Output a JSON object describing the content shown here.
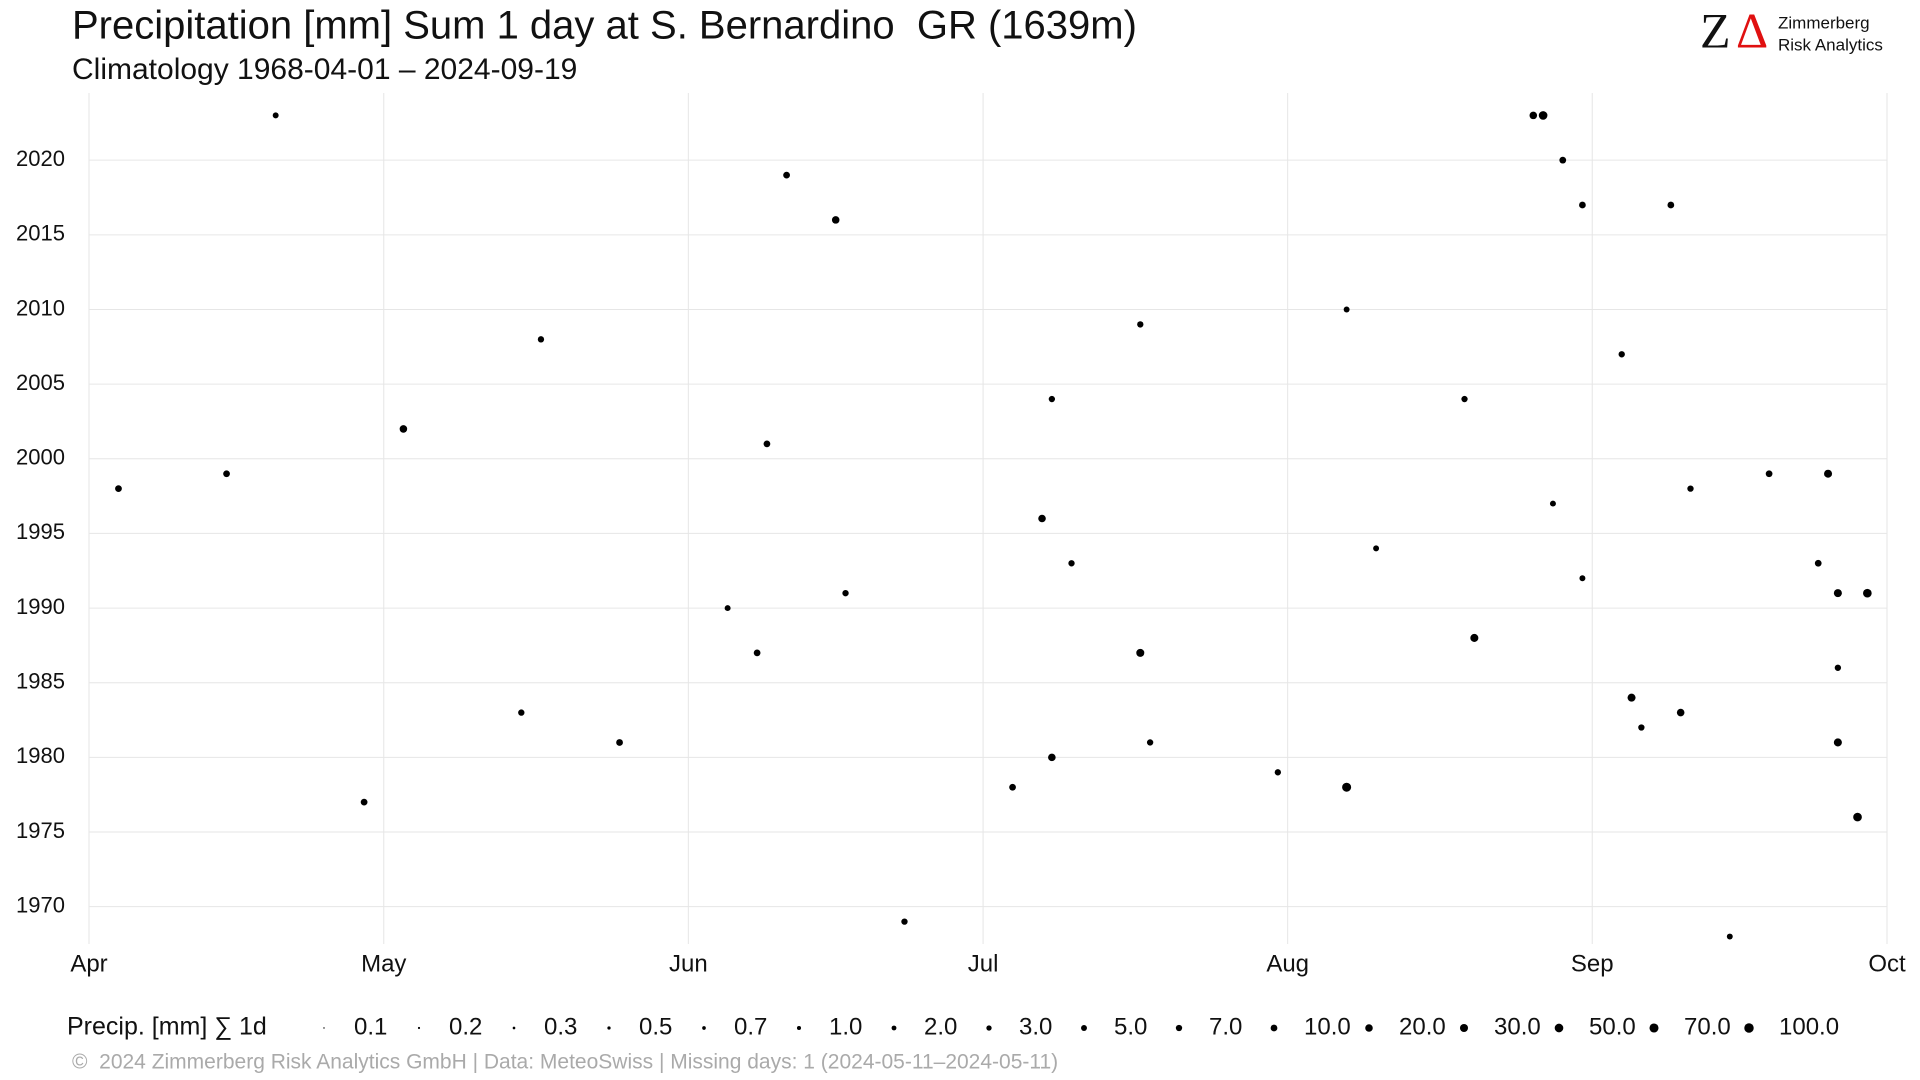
{
  "chart_data": {
    "type": "scatter",
    "title": "Precipitation [mm] Sum 1 day at S. Bernardino  GR (1639m)",
    "subtitle": "Climatology 1968-04-01 – 2024-09-19",
    "logo": {
      "mark_a": "Z",
      "mark_b": "Δ",
      "line1": "Zimmerberg",
      "line2": "Risk Analytics"
    },
    "footer": "©  2024 Zimmerberg Risk Analytics GmbH | Data: MeteoSwiss | Missing days: 1 (2024-05-11–2024-05-11)",
    "xlim": [
      0,
      183
    ],
    "xticks": [
      {
        "value": 0,
        "label": "Apr"
      },
      {
        "value": 30,
        "label": "May"
      },
      {
        "value": 61,
        "label": "Jun"
      },
      {
        "value": 91,
        "label": "Jul"
      },
      {
        "value": 122,
        "label": "Aug"
      },
      {
        "value": 153,
        "label": "Sep"
      },
      {
        "value": 183,
        "label": "Oct"
      }
    ],
    "ylim": [
      1967.5,
      2024.5
    ],
    "yticks": [
      1970,
      1975,
      1980,
      1985,
      1990,
      1995,
      2000,
      2005,
      2010,
      2015,
      2020
    ],
    "grid": true,
    "color": "#000000",
    "series": [
      {
        "x": [
          128,
          180,
          181,
          178,
          178,
          177,
          148,
          147,
          141,
          157,
          162,
          107,
          97,
          98,
          94,
          76,
          71,
          69,
          68,
          54,
          32,
          28,
          14,
          3,
          19,
          46,
          107,
          98,
          128,
          152,
          161,
          150,
          149,
          131,
          176,
          171,
          163,
          140,
          156,
          121,
          108,
          100,
          77,
          65,
          44,
          83,
          167,
          158,
          152,
          178
        ],
        "y": [
          1978,
          1976,
          1991,
          1991,
          1981,
          1999,
          2023,
          2023,
          1988,
          1984,
          1983,
          1987,
          1996,
          1980,
          1978,
          2016,
          2019,
          2001,
          1987,
          1981,
          2002,
          1977,
          1999,
          1998,
          2023,
          2008,
          2009,
          2004,
          2010,
          2017,
          2017,
          2020,
          1997,
          1994,
          1993,
          1999,
          1998,
          2004,
          2007,
          1979,
          1981,
          1993,
          1991,
          1990,
          1983,
          1969,
          1968,
          1982,
          1992,
          1986
        ],
        "sizes": [
          70,
          50,
          50,
          30,
          30,
          30,
          50,
          20,
          30,
          30,
          20,
          30,
          20,
          20,
          10,
          20,
          10,
          10,
          10,
          10,
          20,
          10,
          10,
          10,
          5,
          7,
          7,
          7,
          5,
          10,
          10,
          10,
          5,
          5,
          10,
          10,
          7,
          7,
          7,
          7,
          7,
          7,
          7,
          5,
          7,
          7,
          5,
          7,
          5,
          7
        ]
      }
    ],
    "size_legend": {
      "title": "Precip. [mm] ∑ 1d",
      "ticks": [
        0.1,
        0.2,
        0.3,
        0.5,
        0.7,
        {
          "value": 1,
          "label": "1.0"
        },
        {
          "value": 2,
          "label": "2.0"
        },
        {
          "value": 3,
          "label": "3.0"
        },
        {
          "value": 5,
          "label": "5.0"
        },
        {
          "value": 7,
          "label": "7.0"
        },
        {
          "value": 10,
          "label": "10.0"
        },
        {
          "value": 20,
          "label": "20.0"
        },
        {
          "value": 30,
          "label": "30.0"
        },
        {
          "value": 50,
          "label": "50.0"
        },
        {
          "value": 70,
          "label": "70.0"
        },
        {
          "value": 100,
          "label": "100.0"
        }
      ]
    }
  }
}
